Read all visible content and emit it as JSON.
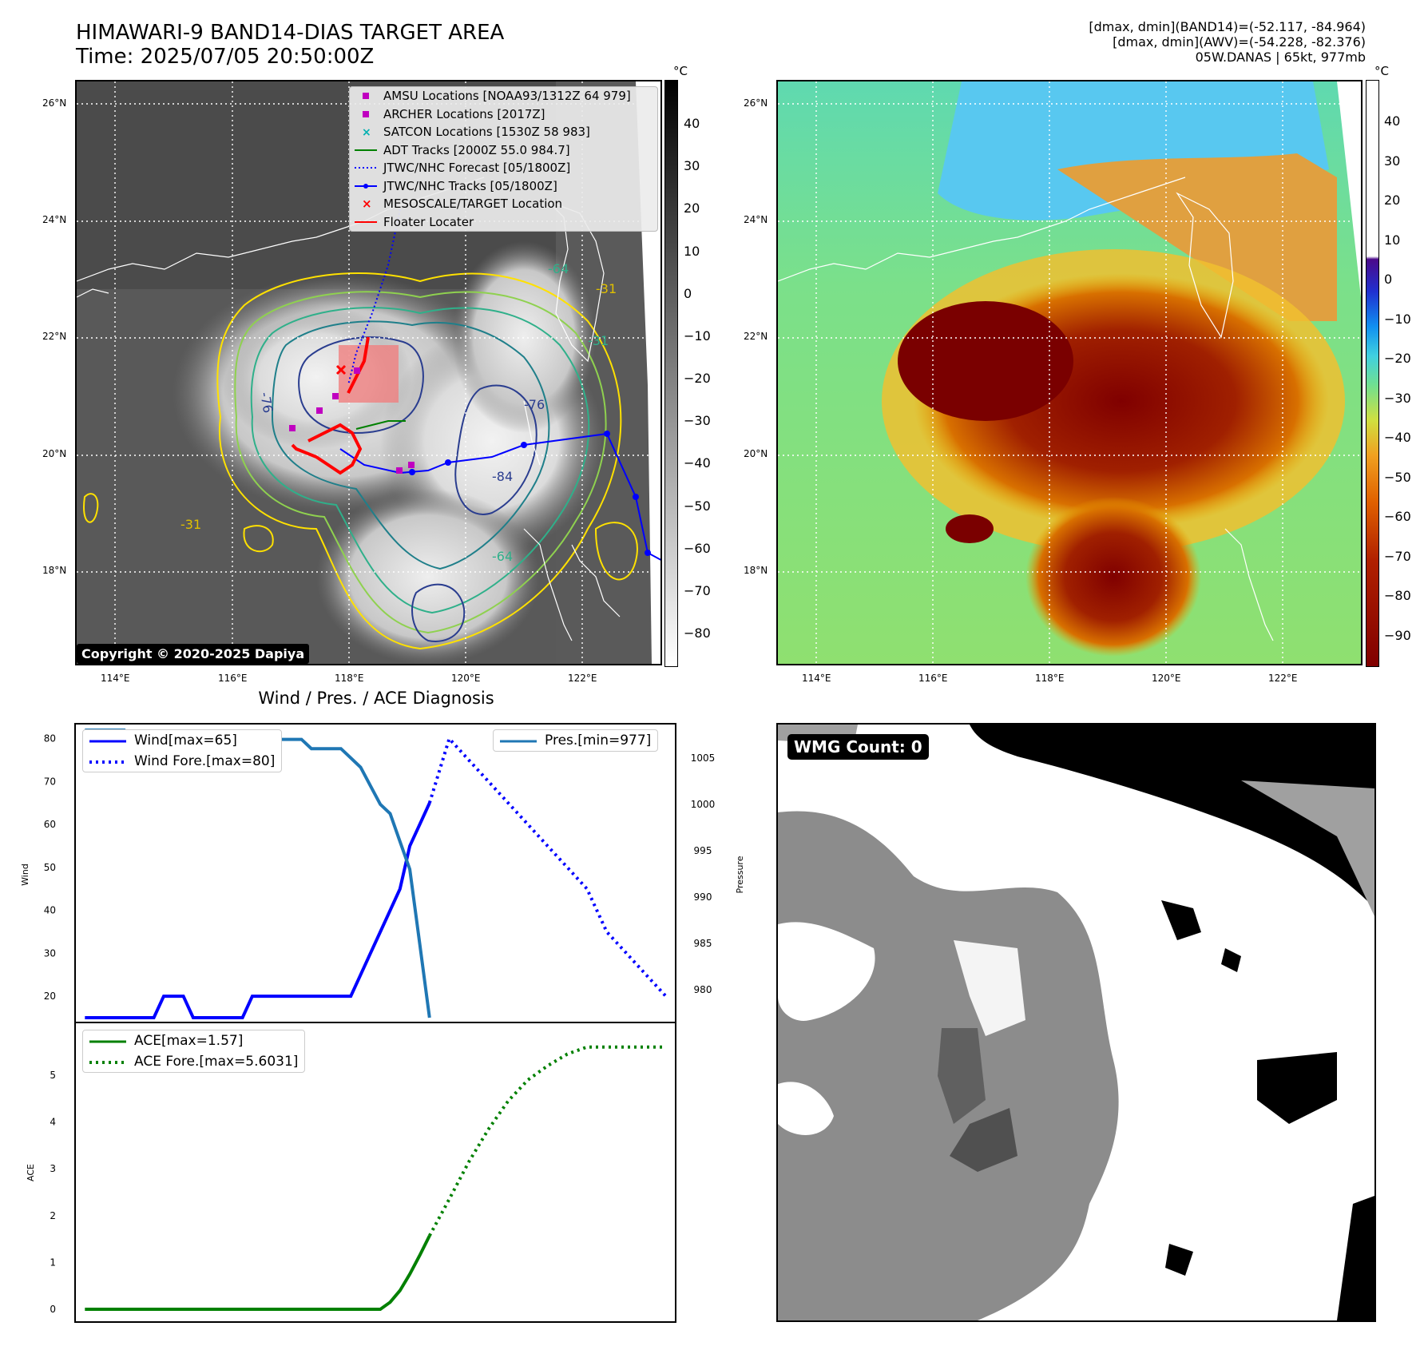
{
  "header": {
    "title_line1": "HIMAWARI-9 BAND14-DIAS TARGET AREA",
    "title_line2": "Time: 2025/07/05 20:50:00Z",
    "right_line1": "[dmax, dmin](BAND14)=(-52.117, -84.964)",
    "right_line2": "[dmax, dmin](AWV)=(-54.228, -82.376)",
    "right_line3": "05W.DANAS | 65kt, 977mb"
  },
  "map_axes": {
    "lat_labels": [
      "26°N",
      "24°N",
      "22°N",
      "20°N",
      "18°N"
    ],
    "lon_labels": [
      "114°E",
      "116°E",
      "118°E",
      "120°E",
      "122°E"
    ]
  },
  "ir_colorbar": {
    "unit": "°C",
    "ticks": [
      "40",
      "30",
      "20",
      "10",
      "0",
      "−10",
      "−20",
      "−30",
      "−40",
      "−50",
      "−60",
      "−70",
      "−80"
    ]
  },
  "awv_colorbar": {
    "unit": "°C",
    "ticks": [
      "40",
      "30",
      "20",
      "10",
      "0",
      "−10",
      "−20",
      "−30",
      "−40",
      "−50",
      "−60",
      "−70",
      "−80",
      "−90"
    ]
  },
  "map_legend": [
    {
      "label": "AMSU Locations [NOAA93/1312Z 64 979]",
      "kind": "square",
      "color": "#c000c0"
    },
    {
      "label": "ARCHER Locations [2017Z]",
      "kind": "square",
      "color": "#c000c0"
    },
    {
      "label": "SATCON Locations [1530Z 58 983]",
      "kind": "cross",
      "color": "#00b0b0"
    },
    {
      "label": "ADT Tracks [2000Z 55.0 984.7]",
      "kind": "line",
      "color": "#008000"
    },
    {
      "label": "JTWC/NHC Forecast [05/1800Z]",
      "kind": "dotted",
      "color": "#0000ff"
    },
    {
      "label": "JTWC/NHC Tracks [05/1800Z]",
      "kind": "linedot",
      "color": "#0000ff"
    },
    {
      "label": "MESOSCALE/TARGET Location",
      "kind": "x",
      "color": "#ff0000"
    },
    {
      "label": "Floater Locater",
      "kind": "line",
      "color": "#ff0000"
    }
  ],
  "contour_labels": [
    "-76",
    "-31",
    "-31",
    "-31",
    "-64",
    "-64",
    "-76",
    "-84"
  ],
  "copyright": "Copyright © 2020-2025 Dapiya",
  "wmg_label": "WMG Count: 0",
  "diag": {
    "title": "Wind / Pres. / ACE Diagnosis",
    "wind_ylabel": "Wind",
    "pres_ylabel": "Pressure",
    "ace_ylabel": "ACE",
    "wind_legend": [
      "Wind[max=65]",
      "Wind Fore.[max=80]"
    ],
    "pres_legend": [
      "Pres.[min=977]"
    ],
    "ace_legend": [
      "ACE[max=1.57]",
      "ACE Fore.[max=5.6031]"
    ],
    "wind_ticks": [
      "80",
      "70",
      "60",
      "50",
      "40",
      "30",
      "20"
    ],
    "pres_ticks": [
      "1005",
      "1000",
      "995",
      "990",
      "985",
      "980"
    ],
    "ace_ticks": [
      "5",
      "4",
      "3",
      "2",
      "1",
      "0"
    ]
  },
  "chart_data": [
    {
      "type": "line",
      "panel": "wind_pressure",
      "x_index_note": "x is observation index",
      "series": [
        {
          "name": "Wind[max=65]",
          "axis": "left",
          "style": "solid",
          "color": "#0000ff",
          "x": [
            0,
            1,
            2,
            3,
            4,
            5,
            6,
            7,
            8,
            9,
            10,
            11,
            12,
            13,
            14,
            15,
            16,
            17,
            18,
            19,
            20,
            21,
            22,
            23,
            24,
            25,
            26,
            27,
            28,
            29,
            30,
            31,
            32,
            33,
            34,
            35
          ],
          "values": [
            15,
            15,
            15,
            15,
            15,
            15,
            15,
            15,
            20,
            20,
            20,
            15,
            15,
            15,
            15,
            15,
            15,
            20,
            20,
            20,
            20,
            20,
            20,
            20,
            20,
            20,
            20,
            20,
            25,
            30,
            35,
            40,
            45,
            55,
            60,
            65
          ]
        },
        {
          "name": "Wind Fore.[max=80]",
          "axis": "left",
          "style": "dotted",
          "color": "#0000ff",
          "x": [
            35,
            37,
            39,
            41,
            43,
            45,
            47,
            49,
            51,
            53,
            55,
            57,
            59
          ],
          "values": [
            65,
            80,
            75,
            70,
            65,
            60,
            55,
            50,
            45,
            35,
            30,
            25,
            20
          ]
        },
        {
          "name": "Pres.[min=977]",
          "axis": "right",
          "style": "solid",
          "color": "#1f77b4",
          "x": [
            0,
            1,
            2,
            3,
            4,
            5,
            6,
            7,
            8,
            9,
            10,
            11,
            12,
            13,
            14,
            15,
            16,
            17,
            18,
            19,
            20,
            21,
            22,
            23,
            24,
            25,
            26,
            27,
            28,
            29,
            30,
            31,
            32,
            33,
            34,
            35
          ],
          "values": [
            1008,
            1008,
            1008,
            1008,
            1008,
            1006,
            1006,
            1006,
            1006,
            1006,
            1006,
            1006,
            1007,
            1007,
            1007,
            1007,
            1006,
            1006,
            1007,
            1007,
            1007,
            1007,
            1007,
            1006,
            1006,
            1006,
            1006,
            1005,
            1004,
            1002,
            1000,
            999,
            996,
            993,
            985,
            977
          ]
        }
      ],
      "ylim_left": [
        15,
        82
      ],
      "ylim_right": [
        977,
        1008
      ]
    },
    {
      "type": "line",
      "panel": "ace",
      "series": [
        {
          "name": "ACE[max=1.57]",
          "style": "solid",
          "color": "#008000",
          "x": [
            0,
            5,
            10,
            15,
            20,
            25,
            30,
            31,
            32,
            33,
            34,
            35
          ],
          "values": [
            0,
            0,
            0,
            0,
            0,
            0,
            0,
            0.15,
            0.4,
            0.75,
            1.15,
            1.57
          ]
        },
        {
          "name": "ACE Fore.[max=5.6031]",
          "style": "dotted",
          "color": "#008000",
          "x": [
            35,
            37,
            39,
            41,
            43,
            45,
            47,
            49,
            51,
            53,
            55,
            57,
            59
          ],
          "values": [
            1.57,
            2.35,
            3.15,
            3.85,
            4.45,
            4.9,
            5.2,
            5.45,
            5.6,
            5.6,
            5.6,
            5.6,
            5.6
          ]
        }
      ],
      "ylim": [
        0,
        5.8
      ]
    }
  ]
}
